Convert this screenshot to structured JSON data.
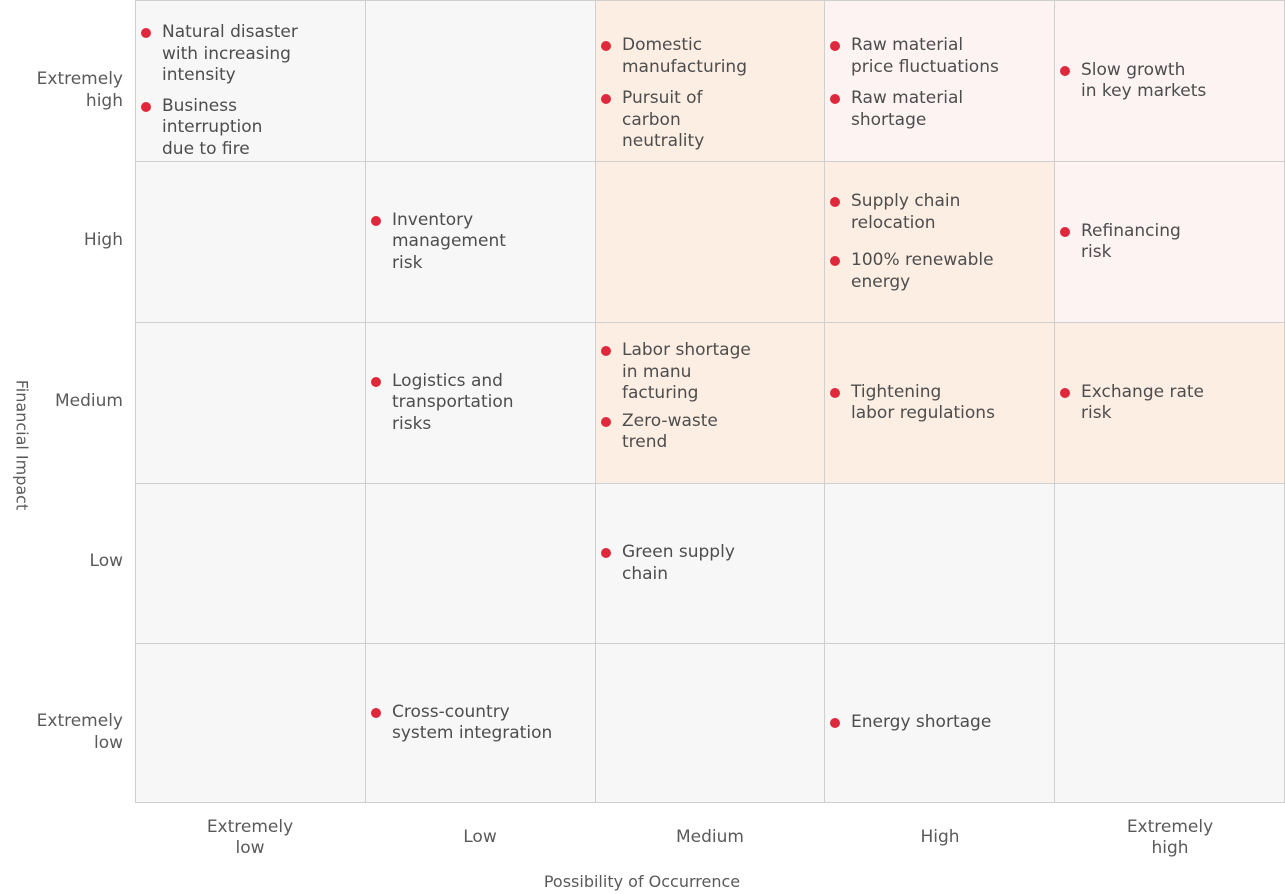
{
  "axes": {
    "x_title": "Possibility of Occurrence",
    "y_title": "Financial Impact",
    "x_levels": [
      "Extremely\nlow",
      "Low",
      "Medium",
      "High",
      "Extremely\nhigh"
    ],
    "y_levels": [
      "Extremely\nhigh",
      "High",
      "Medium",
      "Low",
      "Extremely\nlow"
    ]
  },
  "colors": {
    "dot": "#e0283c",
    "cell_grey": "#f7f7f7",
    "cell_peach": "#fdeee4",
    "cell_pink": "#fdf3f3"
  },
  "matrix": {
    "extremely_high": {
      "extremely_low": [
        "Natural disaster\nwith increasing\nintensity",
        "Business\ninterruption\ndue to fire"
      ],
      "medium": [
        "Domestic\nmanufacturing",
        "Pursuit of\ncarbon\nneutrality"
      ],
      "high": [
        "Raw material\nprice fluctuations",
        "Raw material\nshortage"
      ],
      "extremely_high": [
        "Slow growth\nin key markets"
      ]
    },
    "high": {
      "low": [
        "Inventory\nmanagement\nrisk"
      ],
      "high": [
        "Supply chain\nrelocation",
        "100% renewable\nenergy"
      ],
      "extremely_high": [
        "Refinancing\nrisk"
      ]
    },
    "medium": {
      "low": [
        "Logistics and\ntransportation\nrisks"
      ],
      "medium": [
        "Labor shortage\nin manu\nfacturing",
        "Zero-waste\ntrend"
      ],
      "high": [
        "Tightening\nlabor regulations"
      ],
      "extremely_high": [
        "Exchange rate\nrisk"
      ]
    },
    "low": {
      "medium": [
        "Green supply\nchain"
      ]
    },
    "extremely_low": {
      "low": [
        "Cross-country\nsystem integration"
      ],
      "high": [
        "Energy shortage"
      ]
    }
  }
}
